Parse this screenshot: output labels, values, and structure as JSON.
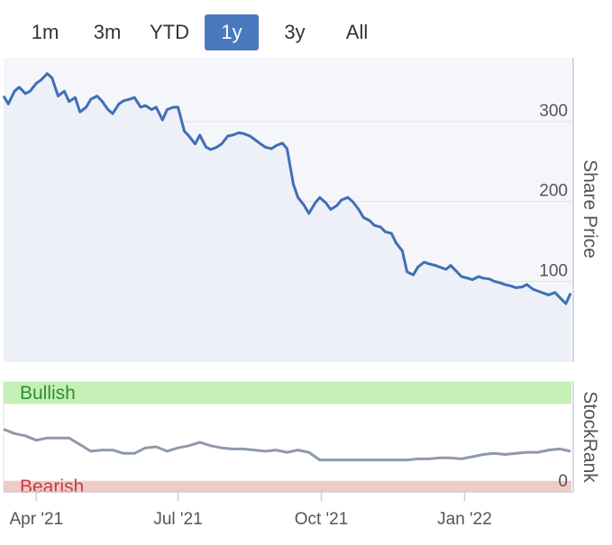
{
  "range_selector": {
    "buttons": [
      "1m",
      "3m",
      "YTD",
      "1y",
      "3y",
      "All"
    ],
    "active": "1y"
  },
  "colors": {
    "accent": "#4a78bd",
    "price_line": "#3f6fb6",
    "rank_line": "#8e9aaa",
    "bullish_fill": "#c6efb7",
    "bullish_text": "#2f8f2f",
    "bearish_fill": "#eecbc7",
    "bearish_text": "#cc3a44"
  },
  "chart_data": [
    {
      "type": "line",
      "name": "share-price",
      "ylabel": "Share Price",
      "ylim": [
        0,
        380
      ],
      "yticks": [
        0,
        100,
        200,
        300
      ],
      "grid": true,
      "x": [
        "2021-03-11",
        "2021-03-14",
        "2021-03-18",
        "2021-03-21",
        "2021-03-25",
        "2021-03-28",
        "2021-04-01",
        "2021-04-04",
        "2021-04-08",
        "2021-04-11",
        "2021-04-15",
        "2021-04-19",
        "2021-04-22",
        "2021-04-26",
        "2021-04-29",
        "2021-05-03",
        "2021-05-06",
        "2021-05-10",
        "2021-05-13",
        "2021-05-17",
        "2021-05-20",
        "2021-05-24",
        "2021-05-27",
        "2021-05-31",
        "2021-06-03",
        "2021-06-07",
        "2021-06-10",
        "2021-06-14",
        "2021-06-17",
        "2021-06-21",
        "2021-06-24",
        "2021-06-28",
        "2021-07-01",
        "2021-07-05",
        "2021-07-08",
        "2021-07-12",
        "2021-07-15",
        "2021-07-19",
        "2021-07-22",
        "2021-07-26",
        "2021-07-29",
        "2021-08-02",
        "2021-08-05",
        "2021-08-09",
        "2021-08-12",
        "2021-08-16",
        "2021-08-19",
        "2021-08-23",
        "2021-08-26",
        "2021-08-30",
        "2021-09-02",
        "2021-09-06",
        "2021-09-09",
        "2021-09-13",
        "2021-09-16",
        "2021-09-20",
        "2021-09-23",
        "2021-09-27",
        "2021-09-30",
        "2021-10-04",
        "2021-10-07",
        "2021-10-11",
        "2021-10-14",
        "2021-10-18",
        "2021-10-21",
        "2021-10-25",
        "2021-10-28",
        "2021-11-01",
        "2021-11-04",
        "2021-11-08",
        "2021-11-11",
        "2021-11-15",
        "2021-11-18",
        "2021-11-22",
        "2021-11-25",
        "2021-11-29",
        "2021-12-02",
        "2021-12-06",
        "2021-12-09",
        "2021-12-13",
        "2021-12-16",
        "2021-12-20",
        "2021-12-23",
        "2021-12-27",
        "2021-12-30",
        "2022-01-03",
        "2022-01-06",
        "2022-01-10",
        "2022-01-13",
        "2022-01-17",
        "2022-01-20",
        "2022-01-24",
        "2022-01-27",
        "2022-01-31",
        "2022-02-03",
        "2022-02-07",
        "2022-02-10",
        "2022-02-14",
        "2022-02-17",
        "2022-02-21",
        "2022-02-24",
        "2022-02-28",
        "2022-03-03",
        "2022-03-07",
        "2022-03-10"
      ],
      "values": [
        332,
        322,
        338,
        343,
        335,
        338,
        348,
        352,
        360,
        355,
        332,
        338,
        325,
        330,
        312,
        318,
        328,
        332,
        326,
        315,
        310,
        322,
        326,
        328,
        330,
        318,
        320,
        315,
        318,
        302,
        315,
        318,
        318,
        288,
        282,
        272,
        283,
        268,
        265,
        268,
        272,
        282,
        283,
        286,
        285,
        282,
        278,
        272,
        268,
        266,
        270,
        273,
        266,
        222,
        205,
        195,
        185,
        198,
        205,
        198,
        190,
        195,
        202,
        205,
        200,
        190,
        180,
        176,
        170,
        168,
        162,
        160,
        148,
        138,
        112,
        108,
        118,
        124,
        122,
        120,
        118,
        115,
        120,
        112,
        106,
        104,
        102,
        106,
        104,
        103,
        100,
        98,
        96,
        94,
        92,
        93,
        96,
        90,
        88,
        85,
        83,
        86,
        80,
        72,
        85
      ]
    },
    {
      "type": "line",
      "name": "stockrank",
      "ylabel": "StockRank",
      "yticks": [
        0
      ],
      "ylim": [
        0,
        100
      ],
      "bands": [
        {
          "label": "Bullish",
          "from": 80,
          "to": 100
        },
        {
          "label": "Bearish",
          "from": 0,
          "to": 10
        }
      ],
      "x": [
        "2021-03-11",
        "2021-03-18",
        "2021-03-25",
        "2021-04-01",
        "2021-04-08",
        "2021-04-15",
        "2021-04-22",
        "2021-04-29",
        "2021-05-06",
        "2021-05-13",
        "2021-05-20",
        "2021-05-27",
        "2021-06-03",
        "2021-06-10",
        "2021-06-17",
        "2021-06-24",
        "2021-07-01",
        "2021-07-08",
        "2021-07-15",
        "2021-07-22",
        "2021-07-29",
        "2021-08-05",
        "2021-08-12",
        "2021-08-19",
        "2021-08-26",
        "2021-09-02",
        "2021-09-09",
        "2021-09-16",
        "2021-09-23",
        "2021-09-30",
        "2021-10-07",
        "2021-10-14",
        "2021-10-21",
        "2021-10-28",
        "2021-11-04",
        "2021-11-11",
        "2021-11-18",
        "2021-11-25",
        "2021-12-02",
        "2021-12-09",
        "2021-12-16",
        "2021-12-23",
        "2021-12-30",
        "2022-01-06",
        "2022-01-13",
        "2022-01-20",
        "2022-01-27",
        "2022-02-03",
        "2022-02-10",
        "2022-02-17",
        "2022-02-24",
        "2022-03-03",
        "2022-03-10"
      ],
      "values": [
        57,
        53,
        51,
        47,
        49,
        49,
        49,
        43,
        37,
        38,
        38,
        35,
        35,
        40,
        41,
        37,
        40,
        42,
        45,
        42,
        40,
        39,
        39,
        38,
        37,
        38,
        36,
        38,
        36,
        29,
        29,
        29,
        29,
        29,
        29,
        29,
        29,
        29,
        30,
        30,
        31,
        31,
        30,
        32,
        34,
        35,
        34,
        35,
        36,
        36,
        38,
        39,
        37
      ]
    }
  ],
  "x_axis": {
    "ticks": [
      {
        "label": "Apr '21",
        "date": "2021-04-01"
      },
      {
        "label": "Jul '21",
        "date": "2021-07-01"
      },
      {
        "label": "Oct '21",
        "date": "2021-10-01"
      },
      {
        "label": "Jan '22",
        "date": "2022-01-01"
      }
    ]
  }
}
